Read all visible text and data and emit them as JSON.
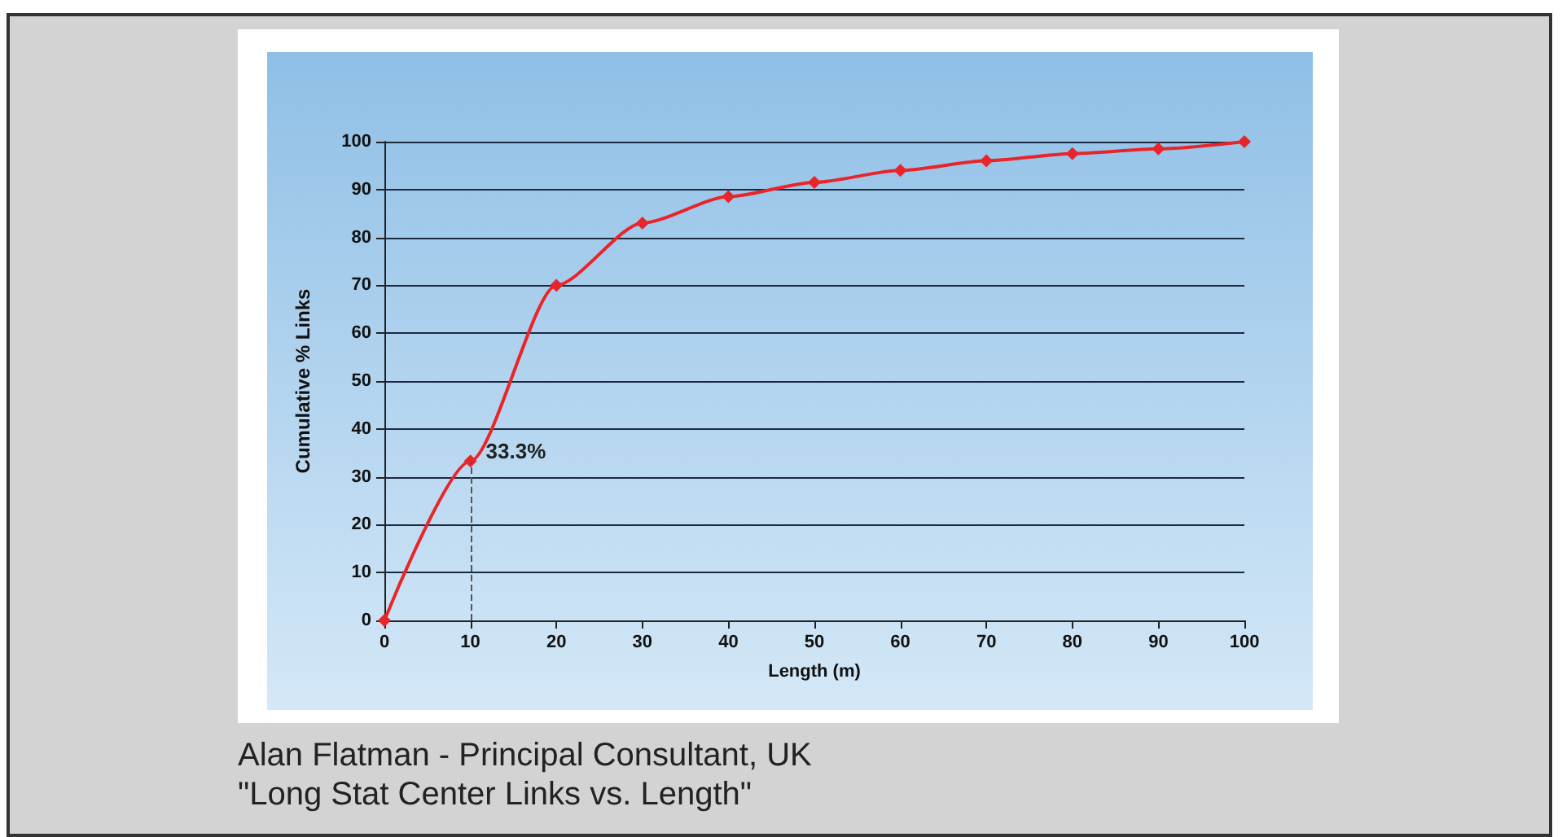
{
  "chart_data": {
    "type": "line",
    "xlabel": "Length (m)",
    "ylabel": "Cumulative % Links",
    "x": [
      0,
      10,
      20,
      30,
      40,
      50,
      60,
      70,
      80,
      90,
      100
    ],
    "series": [
      {
        "color": "#e8252a",
        "values": [
          0,
          33.3,
          70,
          83,
          88.5,
          91.5,
          94,
          96,
          97.5,
          98.5,
          100
        ]
      }
    ],
    "xlim": [
      0,
      100
    ],
    "xticks": [
      0,
      10,
      20,
      30,
      40,
      50,
      60,
      70,
      80,
      90,
      100
    ],
    "ylim": [
      0,
      100
    ],
    "yticks": [
      0,
      10,
      20,
      30,
      40,
      50,
      60,
      70,
      80,
      90,
      100
    ],
    "grid": "y",
    "marker": "diamond",
    "line_style": "solid",
    "annotations": [
      {
        "text": "33.3%",
        "x": 10,
        "y": 33.3
      },
      "Alan Flatman - Principal Consultant, UK",
      "\"Long Stat Center Links vs. Length\""
    ]
  }
}
